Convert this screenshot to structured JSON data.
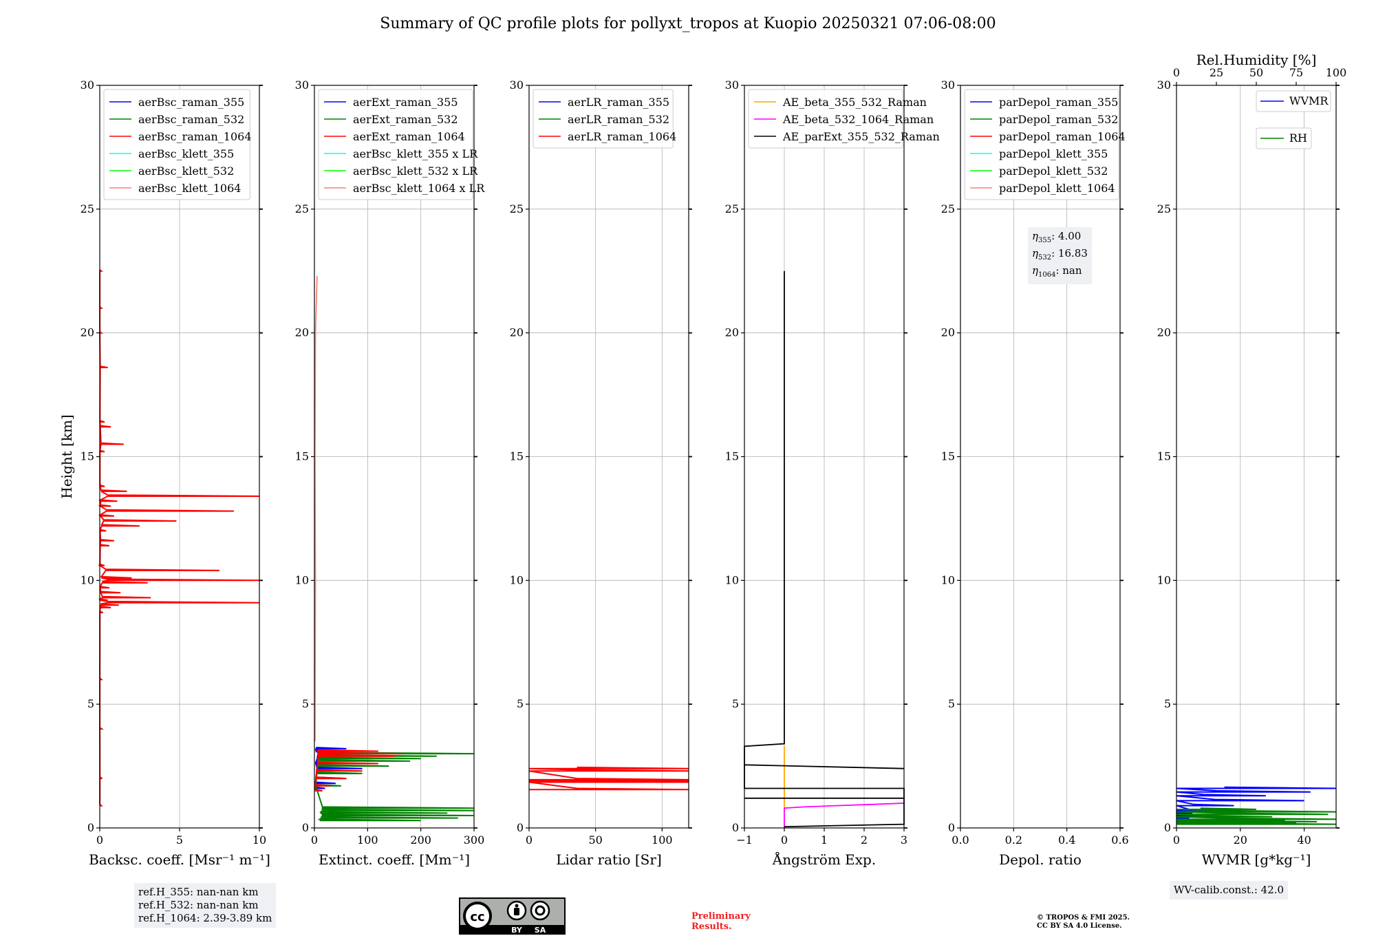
{
  "title": "Summary of QC profile plots for pollyxt_tropos at Kuopio 20250321 07:06-08:00",
  "chart_data": [
    {
      "type": "line",
      "id": "backscatter",
      "xlabel": "Backsc. coeff. [Msr⁻¹ m⁻¹]",
      "ylabel": "Height [km]",
      "xlim": [
        0,
        10
      ],
      "ylim": [
        0,
        30
      ],
      "xticks": [
        0,
        5,
        10
      ],
      "yticks": [
        0,
        5,
        10,
        15,
        20,
        25,
        30
      ],
      "grid": true,
      "legend_position": "top-left",
      "legend": [
        {
          "name": "aerBsc_raman_355",
          "color": "#0000ff"
        },
        {
          "name": "aerBsc_raman_532",
          "color": "#008000"
        },
        {
          "name": "aerBsc_raman_1064",
          "color": "#ff0000"
        },
        {
          "name": "aerBsc_klett_355",
          "color": "#00ffff"
        },
        {
          "name": "aerBsc_klett_532",
          "color": "#00ff00"
        },
        {
          "name": "aerBsc_klett_1064",
          "color": "#fa8072"
        }
      ],
      "series": [
        {
          "name": "aerBsc_raman_1064",
          "color": "#ff0000",
          "points": [
            {
              "h": 0.9,
              "v": 0.1
            },
            {
              "h": 2.0,
              "v": 0.15
            },
            {
              "h": 4.0,
              "v": 0.12
            },
            {
              "h": 6.0,
              "v": 0.1
            },
            {
              "h": 8.7,
              "v": 0.2
            },
            {
              "h": 8.9,
              "v": 0.7
            },
            {
              "h": 9.0,
              "v": 1.2
            },
            {
              "h": 9.1,
              "v": 10.0
            },
            {
              "h": 9.2,
              "v": 0.5
            },
            {
              "h": 9.3,
              "v": 3.2
            },
            {
              "h": 9.5,
              "v": 1.3
            },
            {
              "h": 9.7,
              "v": 0.6
            },
            {
              "h": 9.9,
              "v": 3.0
            },
            {
              "h": 10.0,
              "v": 10.0
            },
            {
              "h": 10.1,
              "v": 2.0
            },
            {
              "h": 10.4,
              "v": 7.5
            },
            {
              "h": 10.6,
              "v": 0.3
            },
            {
              "h": 11.4,
              "v": 0.6
            },
            {
              "h": 11.6,
              "v": 0.9
            },
            {
              "h": 12.0,
              "v": 0.4
            },
            {
              "h": 12.2,
              "v": 2.5
            },
            {
              "h": 12.4,
              "v": 4.8
            },
            {
              "h": 12.6,
              "v": 0.9
            },
            {
              "h": 12.8,
              "v": 8.4
            },
            {
              "h": 13.0,
              "v": 0.7
            },
            {
              "h": 13.2,
              "v": 1.1
            },
            {
              "h": 13.4,
              "v": 10.0
            },
            {
              "h": 13.6,
              "v": 1.7
            },
            {
              "h": 13.8,
              "v": 0.3
            },
            {
              "h": 15.2,
              "v": 0.3
            },
            {
              "h": 15.5,
              "v": 1.5
            },
            {
              "h": 16.2,
              "v": 0.7
            },
            {
              "h": 16.4,
              "v": 0.3
            },
            {
              "h": 18.6,
              "v": 0.5
            },
            {
              "h": 20.0,
              "v": 0.1
            },
            {
              "h": 21.0,
              "v": 0.1
            },
            {
              "h": 22.5,
              "v": 0.1
            }
          ]
        }
      ]
    },
    {
      "type": "line",
      "id": "extinction",
      "xlabel": "Extinct. coeff. [Mm⁻¹]",
      "ylabel": "",
      "xlim": [
        0,
        300
      ],
      "ylim": [
        0,
        30
      ],
      "xticks": [
        0,
        100,
        200,
        300
      ],
      "yticks": [
        0,
        5,
        10,
        15,
        20,
        25,
        30
      ],
      "grid": true,
      "legend_position": "top-left",
      "legend": [
        {
          "name": "aerExt_raman_355",
          "color": "#0000ff"
        },
        {
          "name": "aerExt_raman_532",
          "color": "#008000"
        },
        {
          "name": "aerExt_raman_1064",
          "color": "#ff0000"
        },
        {
          "name": "aerBsc_klett_355 x LR",
          "color": "#00ffff"
        },
        {
          "name": "aerBsc_klett_532 x LR",
          "color": "#00ff00"
        },
        {
          "name": "aerBsc_klett_1064 x LR",
          "color": "#fa8072"
        }
      ],
      "series": [
        {
          "name": "aerExt_raman_355",
          "color": "#0000ff",
          "points": [
            {
              "h": 1.6,
              "v": 20
            },
            {
              "h": 1.8,
              "v": 40
            },
            {
              "h": 2.0,
              "v": 60
            },
            {
              "h": 2.2,
              "v": 80
            },
            {
              "h": 2.4,
              "v": 90
            },
            {
              "h": 2.6,
              "v": 55
            },
            {
              "h": 2.8,
              "v": 110
            },
            {
              "h": 3.0,
              "v": 140
            },
            {
              "h": 3.1,
              "v": 50
            },
            {
              "h": 3.2,
              "v": 60
            }
          ]
        },
        {
          "name": "aerExt_raman_532",
          "color": "#008000",
          "points": [
            {
              "h": 0.3,
              "v": 200
            },
            {
              "h": 0.4,
              "v": 270
            },
            {
              "h": 0.5,
              "v": 300
            },
            {
              "h": 0.6,
              "v": 250
            },
            {
              "h": 0.7,
              "v": 300
            },
            {
              "h": 0.8,
              "v": 300
            },
            {
              "h": 1.7,
              "v": 50
            },
            {
              "h": 2.2,
              "v": 90
            },
            {
              "h": 2.5,
              "v": 140
            },
            {
              "h": 2.7,
              "v": 180
            },
            {
              "h": 2.8,
              "v": 200
            },
            {
              "h": 2.9,
              "v": 230
            },
            {
              "h": 3.0,
              "v": 300
            }
          ]
        },
        {
          "name": "aerExt_raman_1064",
          "color": "#ff0000",
          "points": [
            {
              "h": 1.5,
              "v": 15
            },
            {
              "h": 1.7,
              "v": 30
            },
            {
              "h": 2.0,
              "v": 60
            },
            {
              "h": 2.3,
              "v": 90
            },
            {
              "h": 2.6,
              "v": 120
            },
            {
              "h": 2.9,
              "v": 150
            },
            {
              "h": 3.0,
              "v": 165
            },
            {
              "h": 3.1,
              "v": 120
            }
          ]
        },
        {
          "name": "aerBsc_klett_1064 x LR",
          "color": "#fa8072",
          "points": [
            {
              "h": 3.5,
              "v": 1
            },
            {
              "h": 10.0,
              "v": 2
            },
            {
              "h": 15.0,
              "v": 1
            },
            {
              "h": 20.0,
              "v": 2
            },
            {
              "h": 22.3,
              "v": 5
            }
          ]
        }
      ]
    },
    {
      "type": "line",
      "id": "lidar_ratio",
      "xlabel": "Lidar ratio [Sr]",
      "ylabel": "",
      "xlim": [
        0,
        120
      ],
      "ylim": [
        0,
        30
      ],
      "xticks": [
        0,
        50,
        100
      ],
      "yticks": [
        0,
        5,
        10,
        15,
        20,
        25,
        30
      ],
      "grid": true,
      "legend_position": "top-left",
      "legend": [
        {
          "name": "aerLR_raman_355",
          "color": "#0000ff"
        },
        {
          "name": "aerLR_raman_532",
          "color": "#008000"
        },
        {
          "name": "aerLR_raman_1064",
          "color": "#ff0000"
        }
      ],
      "series": [
        {
          "name": "aerLR_raman_1064",
          "color": "#ff0000",
          "points": [
            {
              "h": 1.55,
              "v": 120
            },
            {
              "h": 1.85,
              "v": 120
            },
            {
              "h": 1.9,
              "v": 120
            },
            {
              "h": 1.95,
              "v": 120
            },
            {
              "h": 2.3,
              "v": 120
            },
            {
              "h": 2.4,
              "v": 120
            }
          ]
        }
      ]
    },
    {
      "type": "line",
      "id": "angstrom",
      "xlabel": "Ångström Exp.",
      "ylabel": "",
      "xlim": [
        -1,
        3
      ],
      "ylim": [
        0,
        30
      ],
      "xticks": [
        -1,
        0,
        1,
        2,
        3
      ],
      "yticks": [
        0,
        5,
        10,
        15,
        20,
        25,
        30
      ],
      "grid": true,
      "legend_position": "top-left",
      "legend": [
        {
          "name": "AE_beta_355_532_Raman",
          "color": "#ffa500"
        },
        {
          "name": "AE_beta_532_1064_Raman",
          "color": "#ff00ff"
        },
        {
          "name": "AE_parExt_355_532_Raman",
          "color": "#000000"
        }
      ],
      "series": [
        {
          "name": "AE_beta_355_532_Raman",
          "color": "#ffa500",
          "points": [
            {
              "h": 0.8,
              "v": 0
            },
            {
              "h": 3.3,
              "v": 0
            }
          ]
        },
        {
          "name": "AE_beta_532_1064_Raman",
          "color": "#ff00ff",
          "points": [
            {
              "h": 0.0,
              "v": 0
            },
            {
              "h": 0.8,
              "v": 0
            },
            {
              "h": 0.85,
              "v": 0.5
            },
            {
              "h": 0.9,
              "v": 1.3
            },
            {
              "h": 0.95,
              "v": 2.2
            },
            {
              "h": 1.0,
              "v": 3
            }
          ]
        },
        {
          "name": "AE_parExt_355_532_Raman",
          "color": "#000000",
          "points": [
            {
              "h": 0.05,
              "v": 0
            },
            {
              "h": 0.15,
              "v": 3
            },
            {
              "h": 0.15,
              "v": 3
            },
            {
              "h": 1.2,
              "v": 3
            },
            {
              "h": 1.2,
              "v": -1
            },
            {
              "h": 1.2,
              "v": 3
            },
            {
              "h": 1.6,
              "v": 3
            },
            {
              "h": 1.6,
              "v": -1
            },
            {
              "h": 2.55,
              "v": -1
            },
            {
              "h": 2.4,
              "v": 3
            },
            {
              "h": 2.55,
              "v": -1
            },
            {
              "h": 3.3,
              "v": -1
            },
            {
              "h": 3.4,
              "v": 0
            },
            {
              "h": 22.5,
              "v": 0
            }
          ]
        }
      ]
    },
    {
      "type": "line",
      "id": "depolarization",
      "xlabel": "Depol. ratio",
      "ylabel": "",
      "xlim": [
        0.0,
        0.6
      ],
      "ylim": [
        0,
        30
      ],
      "xticks": [
        0.0,
        0.2,
        0.4,
        0.6
      ],
      "xtick_labels": [
        "0.0",
        "0.2",
        "0.4",
        "0.6"
      ],
      "yticks": [
        0,
        5,
        10,
        15,
        20,
        25,
        30
      ],
      "grid": true,
      "legend_position": "top-left",
      "legend": [
        {
          "name": "parDepol_raman_355",
          "color": "#0000ff"
        },
        {
          "name": "parDepol_raman_532",
          "color": "#008000"
        },
        {
          "name": "parDepol_raman_1064",
          "color": "#ff0000"
        },
        {
          "name": "parDepol_klett_355",
          "color": "#00ffff"
        },
        {
          "name": "parDepol_klett_532",
          "color": "#00ff00"
        },
        {
          "name": "parDepol_klett_1064",
          "color": "#fa8072"
        }
      ],
      "series": []
    },
    {
      "type": "line",
      "id": "water_vapor",
      "xlabel": "WVMR [g*kg⁻¹]",
      "x2label": "Rel.Humidity [%]",
      "ylabel": "",
      "xlim": [
        0,
        50
      ],
      "x2lim": [
        0,
        100
      ],
      "ylim": [
        0,
        30
      ],
      "xticks": [
        0,
        20,
        40
      ],
      "x2ticks": [
        0,
        25,
        50,
        75,
        100
      ],
      "yticks": [
        0,
        5,
        10,
        15,
        20,
        25,
        30
      ],
      "grid": true,
      "legend": [
        {
          "name": "WVMR",
          "color": "#0000ff"
        },
        {
          "name": "RH",
          "color": "#008000"
        }
      ],
      "series": [
        {
          "name": "WVMR",
          "color": "#0000ff",
          "points": [
            {
              "h": 0.2,
              "v": 3
            },
            {
              "h": 0.3,
              "v": 6
            },
            {
              "h": 0.4,
              "v": 4
            },
            {
              "h": 0.5,
              "v": 12
            },
            {
              "h": 0.6,
              "v": 5
            },
            {
              "h": 0.7,
              "v": 13
            },
            {
              "h": 0.9,
              "v": 18
            },
            {
              "h": 1.1,
              "v": 40
            },
            {
              "h": 1.3,
              "v": 28
            },
            {
              "h": 1.45,
              "v": 42
            },
            {
              "h": 1.6,
              "v": 50
            }
          ]
        },
        {
          "name": "RH",
          "color": "#008000",
          "points": [
            {
              "h": 0.15,
              "v": 100
            },
            {
              "h": 0.2,
              "v": 75
            },
            {
              "h": 0.25,
              "v": 88
            },
            {
              "h": 0.3,
              "v": 68
            },
            {
              "h": 0.35,
              "v": 100
            },
            {
              "h": 0.45,
              "v": 60
            },
            {
              "h": 0.55,
              "v": 95
            },
            {
              "h": 0.65,
              "v": 100
            },
            {
              "h": 0.75,
              "v": 50
            }
          ]
        }
      ]
    }
  ],
  "info": {
    "ref_355": "ref.H_355: nan-nan km",
    "ref_532": "ref.H_532: nan-nan km",
    "ref_1064": "ref.H_1064: 2.39-3.89 km",
    "eta_355_label": "η",
    "eta_355_sub": "355",
    "eta_355_value": ": 4.00",
    "eta_532_label": "η",
    "eta_532_sub": "532",
    "eta_532_value": ": 16.83",
    "eta_1064_label": "η",
    "eta_1064_sub": "1064",
    "eta_1064_value": ": nan",
    "wv_calib": "WV-calib.const.: 42.0"
  },
  "footer": {
    "license_badge_text_by": "BY",
    "license_badge_text_sa": "SA",
    "license_badge_cc": "cc",
    "prelim_line1": "Preliminary",
    "prelim_line2": "Results.",
    "copyright_line1": "© TROPOS & FMI 2025.",
    "copyright_line2": "CC BY SA 4.0 License."
  }
}
